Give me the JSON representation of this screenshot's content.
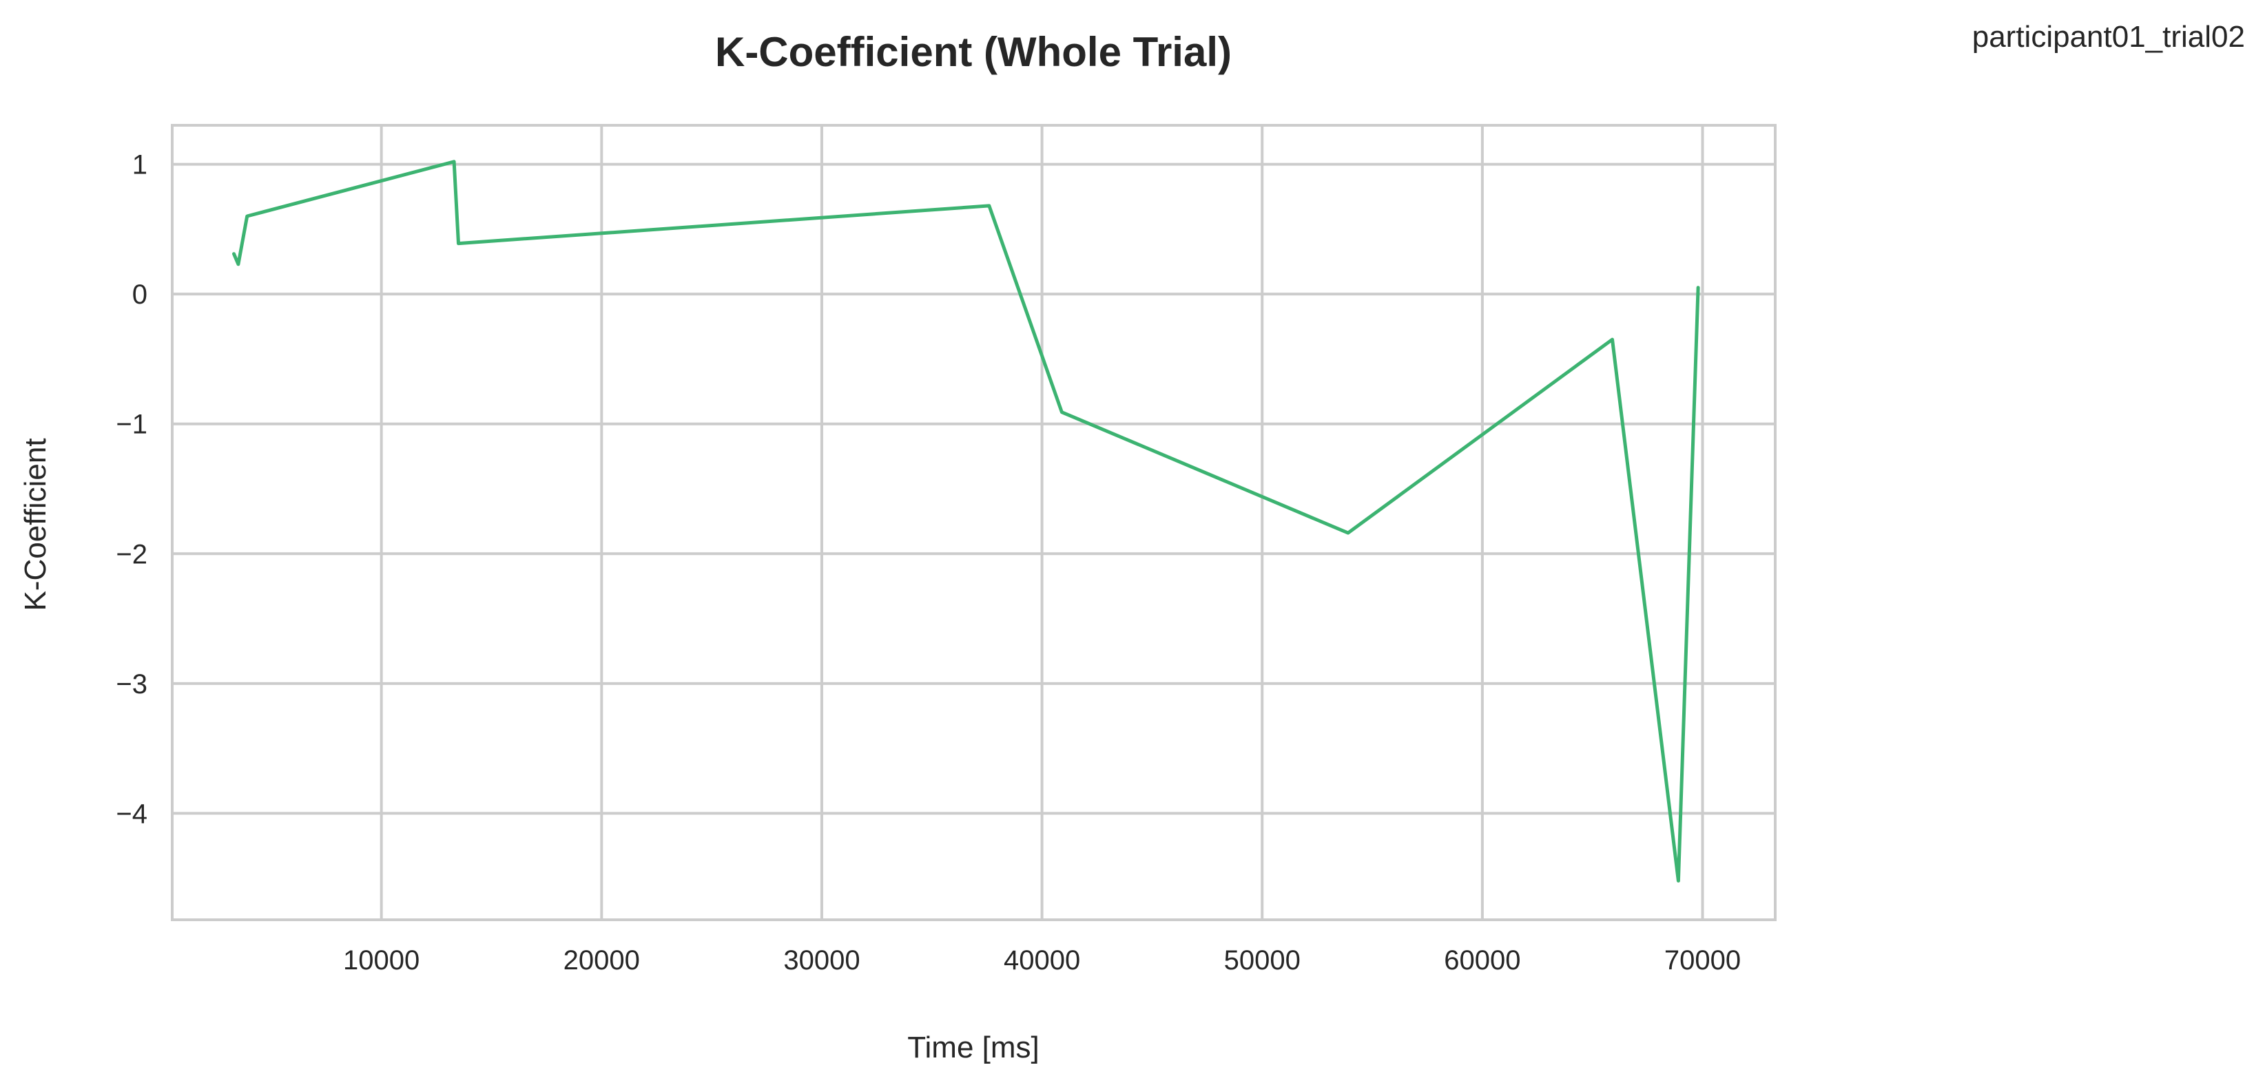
{
  "corner_label": "participant01_trial02",
  "chart_data": {
    "type": "line",
    "title": "K-Coefficient (Whole Trial)",
    "xlabel": "Time [ms]",
    "ylabel": "K-Coefficient",
    "xlim": [
      500,
      73300
    ],
    "ylim": [
      -4.82,
      1.3
    ],
    "grid": true,
    "x_ticks": [
      10000,
      20000,
      30000,
      40000,
      50000,
      60000,
      70000
    ],
    "x_tick_labels": [
      "10000",
      "20000",
      "30000",
      "40000",
      "50000",
      "60000",
      "70000"
    ],
    "y_ticks": [
      1,
      0,
      -1,
      -2,
      -3,
      -4
    ],
    "y_tick_labels": [
      "1",
      "0",
      "−1",
      "−2",
      "−3",
      "−4"
    ],
    "series": [
      {
        "color": "#3cb371",
        "x": [
          3300,
          3500,
          3900,
          13300,
          13500,
          37600,
          40900,
          53900,
          65900,
          68900,
          69800
        ],
        "y": [
          0.31,
          0.23,
          0.6,
          1.02,
          0.39,
          0.68,
          -0.91,
          -1.84,
          -0.35,
          -4.52,
          0.05
        ]
      }
    ]
  }
}
